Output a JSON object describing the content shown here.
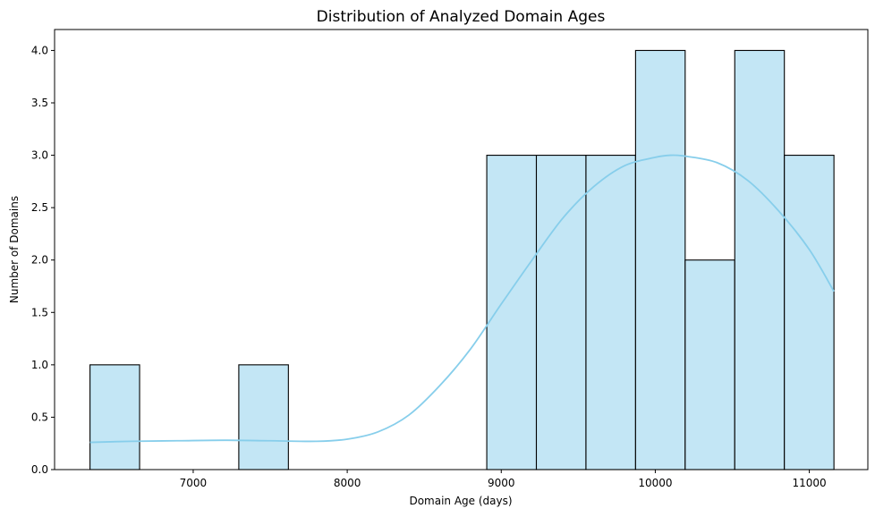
{
  "chart_data": {
    "type": "bar",
    "title": "Distribution of Analyzed Domain Ages",
    "xlabel": "Domain Age (days)",
    "ylabel": "Number of Domains",
    "xlim": [
      6100,
      11380
    ],
    "ylim": [
      0,
      4.2
    ],
    "xticks": [
      7000,
      8000,
      9000,
      10000,
      11000
    ],
    "yticks": [
      0.0,
      0.5,
      1.0,
      1.5,
      2.0,
      2.5,
      3.0,
      3.5,
      4.0
    ],
    "bin_edges": [
      6330,
      6652,
      6974,
      7296,
      7618,
      7940,
      8262,
      8584,
      8906,
      9228,
      9550,
      9872,
      10194,
      10516,
      10838,
      11160
    ],
    "counts": [
      1,
      0,
      0,
      1,
      0,
      0,
      0,
      0,
      3,
      3,
      3,
      4,
      2,
      4,
      3
    ],
    "grid": false,
    "colors": {
      "bar_fill": "#c3e6f5",
      "bar_edge": "#000000",
      "kde_line": "#87ceeb"
    },
    "kde": {
      "x": [
        6330,
        6600,
        6900,
        7200,
        7500,
        7800,
        8000,
        8200,
        8400,
        8600,
        8800,
        9000,
        9200,
        9400,
        9600,
        9800,
        10000,
        10100,
        10200,
        10400,
        10600,
        10800,
        11000,
        11160
      ],
      "y": [
        0.26,
        0.27,
        0.275,
        0.28,
        0.275,
        0.27,
        0.29,
        0.36,
        0.52,
        0.8,
        1.15,
        1.58,
        2.0,
        2.4,
        2.7,
        2.9,
        2.98,
        3.0,
        2.99,
        2.93,
        2.76,
        2.47,
        2.1,
        1.7
      ]
    }
  }
}
